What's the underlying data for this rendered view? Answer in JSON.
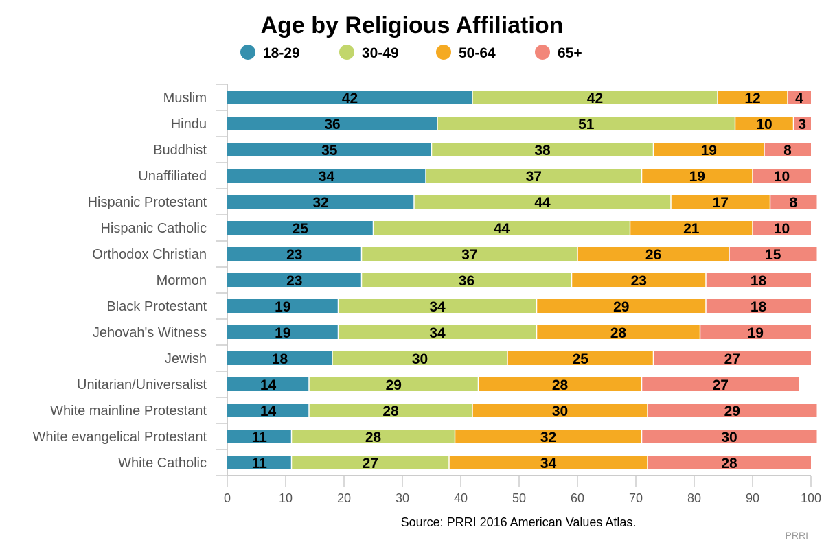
{
  "chart_data": {
    "type": "bar",
    "orientation": "horizontal",
    "stacked": true,
    "title": "Age by Religious Affiliation",
    "categories": [
      "Muslim",
      "Hindu",
      "Buddhist",
      "Unaffiliated",
      "Hispanic Protestant",
      "Hispanic Catholic",
      "Orthodox Christian",
      "Mormon",
      "Black Protestant",
      "Jehovah's Witness",
      "Jewish",
      "Unitarian/Universalist",
      "White mainline Protestant",
      "White evangelical Protestant",
      "White Catholic"
    ],
    "series": [
      {
        "name": "18-29",
        "color": "#3590ae",
        "values": [
          42,
          36,
          35,
          34,
          32,
          25,
          23,
          23,
          19,
          19,
          18,
          14,
          14,
          11,
          11
        ]
      },
      {
        "name": "30-49",
        "color": "#c2d66c",
        "values": [
          42,
          51,
          38,
          37,
          44,
          44,
          37,
          36,
          34,
          34,
          30,
          29,
          28,
          28,
          27
        ]
      },
      {
        "name": "50-64",
        "color": "#f5aa22",
        "values": [
          12,
          10,
          19,
          19,
          17,
          21,
          26,
          23,
          29,
          28,
          25,
          28,
          30,
          32,
          34
        ]
      },
      {
        "name": "65+",
        "color": "#f2877a",
        "values": [
          4,
          3,
          8,
          10,
          8,
          10,
          15,
          18,
          18,
          19,
          27,
          27,
          29,
          30,
          28
        ]
      }
    ],
    "xlim": [
      0,
      100
    ],
    "xticks": [
      0,
      10,
      20,
      30,
      40,
      50,
      60,
      70,
      80,
      90,
      100
    ],
    "xlabel": "",
    "ylabel": "",
    "legend_position": "top",
    "grid": false
  },
  "source": "Source: PRRI 2016 American Values Atlas.",
  "credit": "PRRI"
}
